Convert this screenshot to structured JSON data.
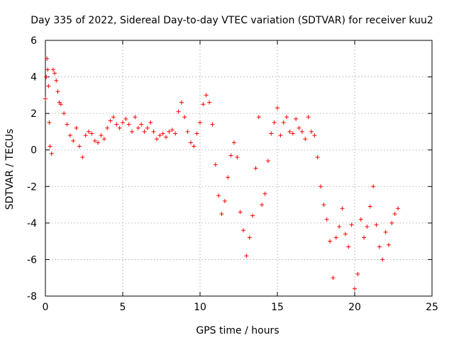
{
  "chart_data": {
    "type": "scatter",
    "title": "Day 335 of 2022, Sidereal Day-to-day VTEC variation (SDTVAR) for receiver kuu2",
    "xlabel": "GPS time / hours",
    "ylabel": "SDTVAR / TECUs",
    "xlim": [
      0,
      25
    ],
    "ylim": [
      -8,
      6
    ],
    "xticks": [
      0,
      5,
      10,
      15,
      20,
      25
    ],
    "yticks": [
      -8,
      -6,
      -4,
      -2,
      0,
      2,
      4,
      6
    ],
    "xtick_labels": [
      "0",
      "5",
      "10",
      "15",
      "20",
      "25"
    ],
    "ytick_labels": [
      "-8",
      "-6",
      "-4",
      "-2",
      "0",
      "2",
      "4",
      "6"
    ],
    "grid": true,
    "marker": "plus",
    "series": [
      {
        "name": "SDTVAR",
        "color": "#ff0000",
        "x": [
          0.0,
          0.05,
          0.1,
          0.15,
          0.2,
          0.25,
          0.3,
          0.4,
          0.5,
          0.6,
          0.7,
          0.8,
          0.9,
          1.0,
          1.2,
          1.4,
          1.6,
          1.8,
          2.0,
          2.2,
          2.4,
          2.6,
          2.8,
          3.0,
          3.2,
          3.4,
          3.6,
          3.8,
          4.0,
          4.2,
          4.4,
          4.6,
          4.8,
          5.0,
          5.2,
          5.4,
          5.6,
          5.8,
          6.0,
          6.2,
          6.4,
          6.6,
          6.8,
          7.0,
          7.2,
          7.4,
          7.6,
          7.8,
          8.0,
          8.2,
          8.4,
          8.6,
          8.8,
          9.0,
          9.2,
          9.4,
          9.6,
          9.8,
          10.0,
          10.2,
          10.4,
          10.6,
          10.8,
          11.0,
          11.2,
          11.4,
          11.6,
          11.8,
          12.0,
          12.2,
          12.4,
          12.6,
          12.8,
          13.0,
          13.2,
          13.4,
          13.6,
          13.8,
          14.0,
          14.2,
          14.4,
          14.6,
          14.8,
          15.0,
          15.2,
          15.4,
          15.6,
          15.8,
          16.0,
          16.2,
          16.4,
          16.6,
          16.8,
          17.0,
          17.2,
          17.4,
          17.6,
          17.8,
          18.0,
          18.2,
          18.4,
          18.6,
          18.8,
          19.0,
          19.2,
          19.4,
          19.6,
          19.8,
          20.0,
          20.2,
          20.4,
          20.6,
          20.8,
          21.0,
          21.2,
          21.4,
          21.6,
          21.8,
          22.0,
          22.2,
          22.4,
          22.6,
          22.8
        ],
        "y": [
          2.8,
          4.0,
          5.0,
          4.4,
          3.5,
          1.5,
          0.2,
          -0.2,
          4.4,
          4.2,
          3.8,
          3.2,
          2.6,
          2.5,
          2.0,
          1.4,
          0.8,
          0.5,
          1.2,
          0.2,
          -0.4,
          0.8,
          1.0,
          0.9,
          0.5,
          0.4,
          0.8,
          0.6,
          1.2,
          1.6,
          1.8,
          1.4,
          1.2,
          1.5,
          1.7,
          1.4,
          1.0,
          1.8,
          1.2,
          1.4,
          1.0,
          1.2,
          1.5,
          1.0,
          0.6,
          0.8,
          0.9,
          0.7,
          1.0,
          1.1,
          0.9,
          2.1,
          2.6,
          1.8,
          1.0,
          0.4,
          0.2,
          0.9,
          1.5,
          2.5,
          3.0,
          2.6,
          1.4,
          -0.8,
          -2.5,
          -3.5,
          -2.8,
          -1.5,
          -0.3,
          0.4,
          -0.4,
          -3.4,
          -4.4,
          -5.8,
          -4.8,
          -3.6,
          -1.0,
          1.8,
          -3.0,
          -2.4,
          -0.6,
          0.9,
          1.5,
          2.3,
          0.8,
          1.5,
          1.8,
          1.0,
          0.9,
          1.7,
          1.2,
          1.0,
          0.6,
          1.8,
          1.0,
          0.8,
          -0.4,
          -2.0,
          -3.0,
          -3.8,
          -5.0,
          -7.0,
          -4.8,
          -4.2,
          -3.2,
          -4.6,
          -5.3,
          -4.1,
          -7.6,
          -6.8,
          -3.8,
          -4.8,
          -4.2,
          -3.1,
          -2.0,
          -4.1,
          -5.3,
          -6.0,
          -4.5,
          -5.2,
          -4.0,
          -3.5,
          -3.2
        ]
      }
    ]
  }
}
